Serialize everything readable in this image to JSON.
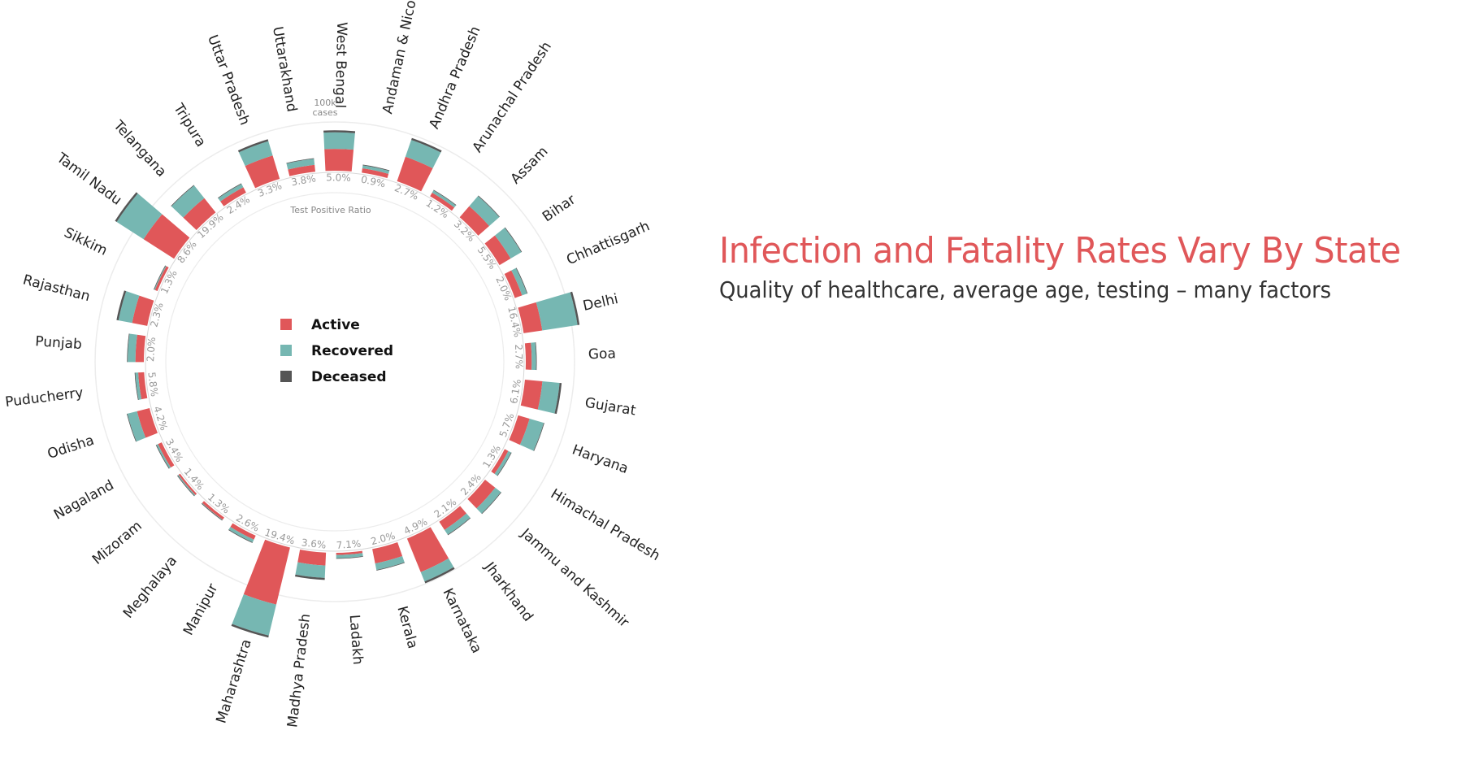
{
  "title": "Infection and Fatality Rates Vary By State",
  "subtitle": "Quality of healthcare, average age, testing – many factors",
  "scale_label_line1": "100k",
  "scale_label_line2": "cases",
  "inner_ring_label": "Test Positive Ratio",
  "legend": [
    {
      "label": "Active",
      "color": "#e05759"
    },
    {
      "label": "Recovered",
      "color": "#76b7b2"
    },
    {
      "label": "Deceased",
      "color": "#555555"
    }
  ],
  "chart_data": {
    "type": "radial-stacked-bar",
    "scale_reference_cases": 100000,
    "series": [
      {
        "name": "Active",
        "color": "#e05759"
      },
      {
        "name": "Recovered",
        "color": "#76b7b2"
      },
      {
        "name": "Deceased",
        "color": "#555555"
      }
    ],
    "states": [
      {
        "name": "Andaman & Nicobar",
        "tpr": "0.9%",
        "active": 800,
        "recovered": 1500,
        "deceased": 40
      },
      {
        "name": "Andhra Pradesh",
        "tpr": "2.7%",
        "active": 28000,
        "recovered": 52000,
        "deceased": 1000
      },
      {
        "name": "Arunachal Pradesh",
        "tpr": "1.2%",
        "active": 700,
        "recovered": 1200,
        "deceased": 5
      },
      {
        "name": "Assam",
        "tpr": "3.2%",
        "active": 9000,
        "recovered": 24000,
        "deceased": 100
      },
      {
        "name": "Bihar",
        "tpr": "5.5%",
        "active": 7000,
        "recovered": 20000,
        "deceased": 200
      },
      {
        "name": "Chhattisgarh",
        "tpr": "2.0%",
        "active": 2500,
        "recovered": 4500,
        "deceased": 40
      },
      {
        "name": "Delhi",
        "tpr": "16.4%",
        "active": 15000,
        "recovered": 110000,
        "deceased": 3800
      },
      {
        "name": "Goa",
        "tpr": "2.7%",
        "active": 1500,
        "recovered": 3000,
        "deceased": 30
      },
      {
        "name": "Gujarat",
        "tpr": "6.1%",
        "active": 13000,
        "recovered": 38000,
        "deceased": 2200
      },
      {
        "name": "Haryana",
        "tpr": "5.7%",
        "active": 6000,
        "recovered": 24000,
        "deceased": 400
      },
      {
        "name": "Himachal Pradesh",
        "tpr": "1.3%",
        "active": 700,
        "recovered": 1500,
        "deceased": 10
      },
      {
        "name": "Jammu and Kashmir",
        "tpr": "2.4%",
        "active": 7000,
        "recovered": 10000,
        "deceased": 300
      },
      {
        "name": "Jharkhand",
        "tpr": "2.1%",
        "active": 4000,
        "recovered": 6000,
        "deceased": 100
      },
      {
        "name": "Karnataka",
        "tpr": "4.9%",
        "active": 55000,
        "recovered": 35000,
        "deceased": 1800
      },
      {
        "name": "Kerala",
        "tpr": "2.0%",
        "active": 9000,
        "recovered": 10000,
        "deceased": 50
      },
      {
        "name": "Ladakh",
        "tpr": "7.1%",
        "active": 200,
        "recovered": 1000,
        "deceased": 5
      },
      {
        "name": "Madhya Pradesh",
        "tpr": "3.6%",
        "active": 7000,
        "recovered": 20000,
        "deceased": 800
      },
      {
        "name": "Maharashtra",
        "tpr": "19.4%",
        "active": 145000,
        "recovered": 200000,
        "deceased": 12500
      },
      {
        "name": "Manipur",
        "tpr": "2.6%",
        "active": 800,
        "recovered": 1500,
        "deceased": 5
      },
      {
        "name": "Meghalaya",
        "tpr": "1.3%",
        "active": 300,
        "recovered": 100,
        "deceased": 5
      },
      {
        "name": "Mizoram",
        "tpr": "1.4%",
        "active": 150,
        "recovered": 200,
        "deceased": 5
      },
      {
        "name": "Nagaland",
        "tpr": "3.4%",
        "active": 700,
        "recovered": 700,
        "deceased": 5
      },
      {
        "name": "Odisha",
        "tpr": "4.2%",
        "active": 7000,
        "recovered": 15000,
        "deceased": 100
      },
      {
        "name": "Puducherry",
        "tpr": "5.8%",
        "active": 1500,
        "recovered": 1800,
        "deceased": 40
      },
      {
        "name": "Punjab",
        "tpr": "2.0%",
        "active": 3000,
        "recovered": 8000,
        "deceased": 300
      },
      {
        "name": "Rajasthan",
        "tpr": "2.3%",
        "active": 10000,
        "recovered": 26000,
        "deceased": 600
      },
      {
        "name": "Sikkim",
        "tpr": "1.3%",
        "active": 300,
        "recovered": 200,
        "deceased": 5
      },
      {
        "name": "Tamil Nadu",
        "tpr": "8.6%",
        "active": 55000,
        "recovered": 140000,
        "deceased": 3500
      },
      {
        "name": "Telangana",
        "tpr": "19.9%",
        "active": 14000,
        "recovered": 36000,
        "deceased": 400
      },
      {
        "name": "Tripura",
        "tpr": "2.4%",
        "active": 1500,
        "recovered": 2500,
        "deceased": 10
      },
      {
        "name": "Uttar Pradesh",
        "tpr": "3.3%",
        "active": 25000,
        "recovered": 40000,
        "deceased": 1500
      },
      {
        "name": "Uttarakhand",
        "tpr": "3.8%",
        "active": 2000,
        "recovered": 5000,
        "deceased": 50
      },
      {
        "name": "West Bengal",
        "tpr": "5.0%",
        "active": 20000,
        "recovered": 42000,
        "deceased": 1500
      }
    ]
  }
}
